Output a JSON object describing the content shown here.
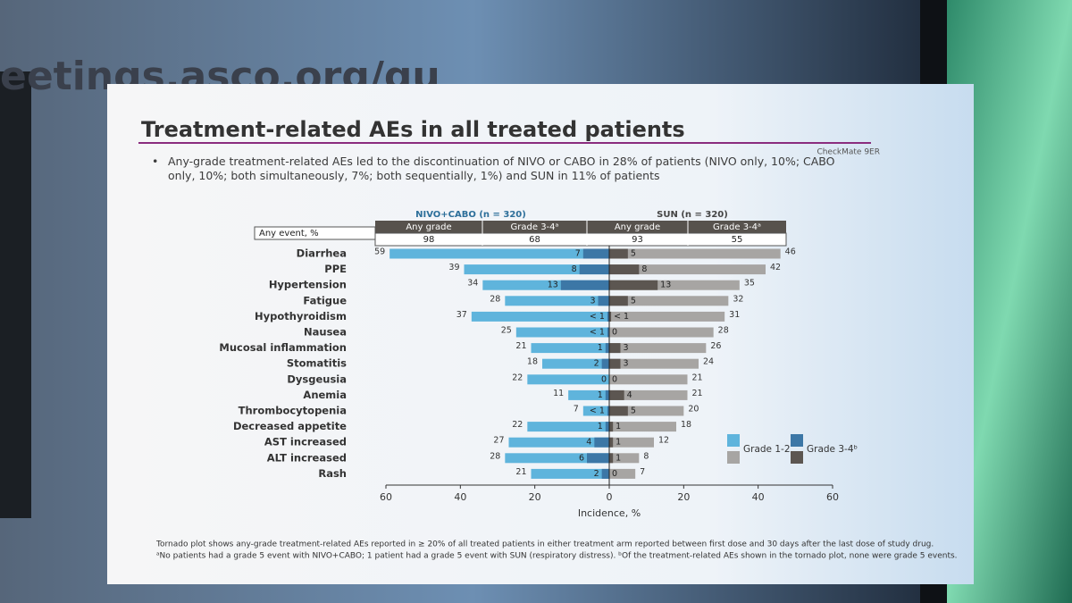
{
  "screen": {
    "banner": "eetings.asco.org/gu"
  },
  "slide": {
    "title": "Treatment-related AEs in all treated patients",
    "tag": "CheckMate 9ER",
    "bullet": "Any-grade treatment-related AEs led to the discontinuation of NIVO or CABO in 28% of patients (NIVO only, 10%; CABO only, 10%; both simultaneously, 7%; both sequentially, 1%) and SUN in 11% of patients",
    "footnotes": [
      "Tornado plot shows any-grade treatment-related AEs reported in ≥ 20% of all treated patients in either treatment arm reported between first dose and 30 days after the last dose of study drug.",
      "ᵃNo patients had a grade 5 event with NIVO+CABO; 1 patient had a grade 5 event with SUN (respiratory distress). ᵇOf the treatment-related AEs shown in the tornado plot, none were grade 5 events."
    ]
  },
  "table": {
    "row_label": "Any event, %",
    "columns": [
      "Any grade",
      "Grade 3-4ᵃ",
      "Any grade",
      "Grade 3-4ᵃ"
    ],
    "values": [
      98,
      68,
      93,
      55
    ]
  },
  "chart_data": {
    "type": "tornado",
    "x_label": "Incidence, %",
    "xlim": [
      -60,
      60
    ],
    "xticks": [
      {
        "value": -60,
        "label": "60"
      },
      {
        "value": -40,
        "label": "40"
      },
      {
        "value": -20,
        "label": "20"
      },
      0,
      20,
      40,
      60
    ],
    "categories": [
      "Diarrhea",
      "PPE",
      "Hypertension",
      "Fatigue",
      "Hypothyroidism",
      "Nausea",
      "Mucosal inflammation",
      "Stomatitis",
      "Dysgeusia",
      "Anemia",
      "Thrombocytopenia",
      "Decreased appetite",
      "AST increased",
      "ALT increased",
      "Rash"
    ],
    "legend": [
      "Grade 1-2",
      "Grade 3-4ᵇ"
    ],
    "arms": [
      {
        "name": "NIVO+CABO (n = 320)",
        "side": "left",
        "any_grade": {
          "color": "#5fb4dc",
          "values": [
            59,
            39,
            34,
            28,
            37,
            25,
            21,
            18,
            22,
            11,
            7,
            22,
            27,
            28,
            21
          ]
        },
        "grade_3_4": {
          "color": "#3c77a6",
          "values": [
            7,
            8,
            13,
            3,
            0.5,
            0.5,
            1,
            2,
            0,
            1,
            0.5,
            1,
            4,
            6,
            2
          ],
          "value_labels": [
            "7",
            "8",
            "13",
            "3",
            "< 1",
            "< 1",
            "1",
            "2",
            "0",
            "1",
            "< 1",
            "1",
            "4",
            "6",
            "2"
          ]
        }
      },
      {
        "name": "SUN (n = 320)",
        "side": "right",
        "any_grade": {
          "color": "#a7a5a3",
          "values": [
            46,
            42,
            35,
            32,
            31,
            28,
            26,
            24,
            21,
            21,
            20,
            18,
            12,
            8,
            7
          ]
        },
        "grade_3_4": {
          "color": "#5c5651",
          "values": [
            5,
            8,
            13,
            5,
            0.5,
            0,
            3,
            3,
            0,
            4,
            5,
            1,
            1,
            1,
            0
          ],
          "value_labels": [
            "5",
            "8",
            "13",
            "5",
            "< 1",
            "0",
            "3",
            "3",
            "0",
            "4",
            "5",
            "1",
            "1",
            "1",
            "0"
          ]
        }
      }
    ]
  }
}
